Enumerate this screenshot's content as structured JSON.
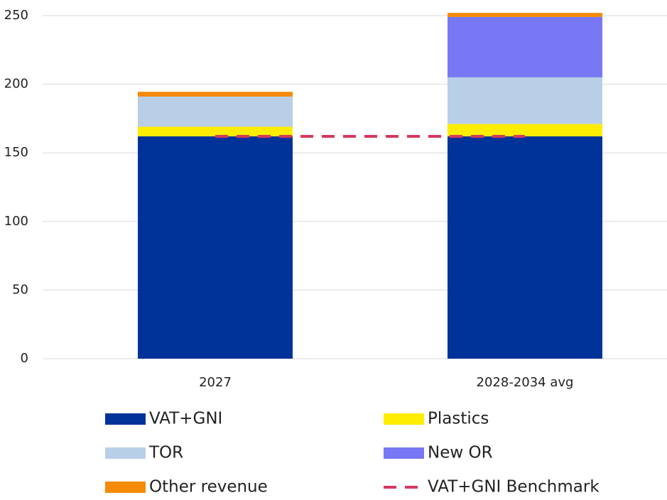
{
  "chart_data": {
    "type": "bar",
    "stacked": true,
    "categories": [
      "2027",
      "2028-2034 avg"
    ],
    "series": [
      {
        "name": "VAT+GNI",
        "color": "#003399",
        "values": [
          162,
          162
        ]
      },
      {
        "name": "Plastics",
        "color": "#ffed00",
        "values": [
          7,
          9
        ]
      },
      {
        "name": "TOR",
        "color": "#b9cfe7",
        "values": [
          22,
          34
        ]
      },
      {
        "name": "New OR",
        "color": "#7878f5",
        "values": [
          0,
          44
        ]
      },
      {
        "name": "Other revenue",
        "color": "#f58a07",
        "values": [
          3.5,
          3
        ]
      },
      {
        "name": "VAT+GNI Benchmark",
        "color": "#d6385f",
        "type": "line",
        "dashed": true,
        "values": [
          162,
          162
        ]
      }
    ],
    "ylim": [
      0,
      250
    ],
    "yticks": [
      0,
      50,
      100,
      150,
      200,
      250
    ],
    "grid": true
  }
}
